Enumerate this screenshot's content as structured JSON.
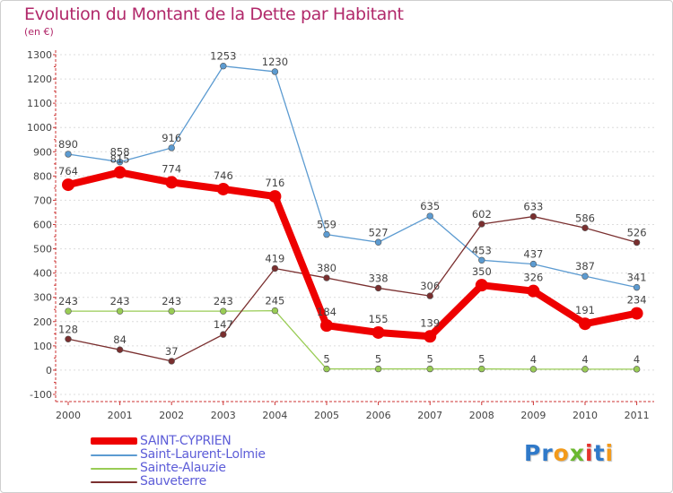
{
  "title": "Evolution du Montant de la Dette par Habitant",
  "unit": "(en €)",
  "chart_data": {
    "type": "line",
    "title": "Evolution du Montant de la Dette par Habitant",
    "subtitle": "(en €)",
    "xlabel": "",
    "ylabel": "",
    "categories": [
      "2000",
      "2001",
      "2002",
      "2003",
      "2004",
      "2005",
      "2006",
      "2007",
      "2008",
      "2009",
      "2010",
      "2011"
    ],
    "ylim": [
      -100,
      1300
    ],
    "yticks": [
      -100,
      0,
      100,
      200,
      300,
      400,
      500,
      600,
      700,
      800,
      900,
      1000,
      1100,
      1200,
      1300
    ],
    "grid": "horizontal dashed",
    "legend_position": "bottom-left",
    "series": [
      {
        "name": "Saint-Laurent-Lolmie",
        "color": "#5c9bd1",
        "values": [
          890,
          858,
          916,
          1253,
          1230,
          559,
          527,
          635,
          453,
          437,
          387,
          341
        ],
        "labels": [
          "890",
          "858",
          "916",
          "1253",
          "1230",
          "559",
          "527",
          "635",
          "453",
          "437",
          "387",
          "341"
        ]
      },
      {
        "name": "Sainte-Alauzie",
        "color": "#99cc55",
        "values": [
          243,
          243,
          243,
          243,
          245,
          5,
          5,
          5,
          5,
          4,
          4,
          4
        ],
        "labels": [
          "243",
          "243",
          "243",
          "243",
          "245",
          "5",
          "5",
          "5",
          "5",
          "4",
          "4",
          "4"
        ]
      },
      {
        "name": "Sauveterre",
        "color": "#7a2f2f",
        "values": [
          128,
          84,
          37,
          147,
          419,
          380,
          338,
          306,
          602,
          633,
          586,
          526
        ],
        "labels": [
          "128",
          "84",
          "37",
          "147",
          "419",
          "380",
          "338",
          "306",
          "602",
          "633",
          "586",
          "526"
        ]
      },
      {
        "name": "SAINT-CYPRIEN",
        "color": "#ee0000",
        "values": [
          764,
          815,
          774,
          746,
          716,
          184,
          155,
          139,
          350,
          326,
          191,
          234
        ],
        "labels": [
          "764",
          "815",
          "774",
          "746",
          "716",
          "184",
          "155",
          "139",
          "350",
          "326",
          "191",
          "234"
        ]
      }
    ]
  },
  "legend": [
    {
      "name": "SAINT-CYPRIEN",
      "color": "#ee0000"
    },
    {
      "name": "Saint-Laurent-Lolmie",
      "color": "#5c9bd1"
    },
    {
      "name": "Sainte-Alauzie",
      "color": "#99cc55"
    },
    {
      "name": "Sauveterre",
      "color": "#7a2f2f"
    }
  ],
  "logo": {
    "text": "Proxiti",
    "colors": [
      "#2f79c9",
      "#2f79c9",
      "#f39a1a",
      "#6bb82f",
      "#e5322d",
      "#2f79c9",
      "#f39a1a"
    ]
  }
}
